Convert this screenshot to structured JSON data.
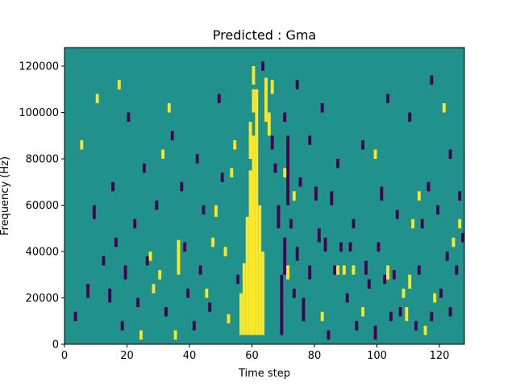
{
  "chart_data": {
    "type": "heatmap",
    "title": "Predicted : Gma",
    "xlabel": "Time step",
    "ylabel": "Frequency (Hz)",
    "xlim": [
      0,
      128
    ],
    "ylim": [
      0,
      128000
    ],
    "x_ticks": [
      0,
      20,
      40,
      60,
      80,
      100,
      120
    ],
    "y_ticks": [
      0,
      20000,
      40000,
      60000,
      80000,
      100000,
      120000
    ],
    "x_tick_labels": [
      "0",
      "20",
      "40",
      "60",
      "80",
      "100",
      "120"
    ],
    "y_tick_labels": [
      "0",
      "20000",
      "40000",
      "60000",
      "80000",
      "100000",
      "120000"
    ],
    "grid": false,
    "colormap": "viridis",
    "value_levels": [
      -1,
      0,
      1
    ],
    "colors": {
      "background": "#21918c",
      "low": "#440154",
      "high": "#fde725"
    },
    "n_time_steps": 128,
    "n_frequency_bins": 128,
    "bin_height_hz": 1000,
    "cells": {
      "high": [
        [
          56,
          4000,
          22000
        ],
        [
          57,
          4000,
          35000
        ],
        [
          58,
          4000,
          55000
        ],
        [
          59,
          4000,
          75000
        ],
        [
          60,
          4000,
          90000
        ],
        [
          61,
          4000,
          110000
        ],
        [
          62,
          4000,
          60000
        ],
        [
          63,
          4000,
          40000
        ],
        [
          59,
          80000,
          96000
        ],
        [
          60,
          100000,
          110000
        ],
        [
          60,
          112000,
          120000
        ],
        [
          64,
          96000,
          115000
        ],
        [
          65,
          90000,
          100000
        ],
        [
          66,
          108000,
          114000
        ],
        [
          36,
          30000,
          45000
        ],
        [
          45,
          20000,
          24000
        ],
        [
          47,
          42000,
          46000
        ],
        [
          48,
          55000,
          60000
        ],
        [
          52,
          9000,
          13000
        ],
        [
          51,
          38000,
          42000
        ],
        [
          53,
          72000,
          76000
        ],
        [
          54,
          84000,
          88000
        ],
        [
          70,
          72000,
          76000
        ],
        [
          71,
          28000,
          34000
        ],
        [
          73,
          62000,
          66000
        ],
        [
          82,
          10000,
          14000
        ],
        [
          87,
          30000,
          34000
        ],
        [
          89,
          30000,
          34000
        ],
        [
          92,
          30000,
          34000
        ],
        [
          95,
          12000,
          16000
        ],
        [
          99,
          80000,
          84000
        ],
        [
          103,
          28000,
          34000
        ],
        [
          108,
          20000,
          24000
        ],
        [
          109,
          10000,
          16000
        ],
        [
          110,
          24000,
          30000
        ],
        [
          111,
          50000,
          54000
        ],
        [
          113,
          62000,
          66000
        ],
        [
          115,
          4000,
          8000
        ],
        [
          118,
          18000,
          22000
        ],
        [
          121,
          100000,
          104000
        ],
        [
          124,
          42000,
          46000
        ],
        [
          126,
          50000,
          54000
        ],
        [
          33,
          100000,
          104000
        ],
        [
          31,
          80000,
          84000
        ],
        [
          27,
          36000,
          40000
        ],
        [
          28,
          22000,
          26000
        ],
        [
          30,
          28000,
          32000
        ],
        [
          35,
          2000,
          6000
        ],
        [
          24,
          2000,
          6000
        ],
        [
          17,
          110000,
          114000
        ],
        [
          10,
          104000,
          108000
        ],
        [
          5,
          84000,
          88000
        ]
      ],
      "low": [
        [
          68,
          50000,
          60000
        ],
        [
          69,
          4000,
          30000
        ],
        [
          70,
          30000,
          46000
        ],
        [
          71,
          60000,
          90000
        ],
        [
          72,
          50000,
          54000
        ],
        [
          73,
          20000,
          24000
        ],
        [
          74,
          36000,
          42000
        ],
        [
          75,
          68000,
          72000
        ],
        [
          76,
          10000,
          20000
        ],
        [
          78,
          28000,
          34000
        ],
        [
          80,
          62000,
          68000
        ],
        [
          81,
          44000,
          50000
        ],
        [
          83,
          40000,
          46000
        ],
        [
          84,
          2000,
          6000
        ],
        [
          85,
          60000,
          66000
        ],
        [
          86,
          30000,
          34000
        ],
        [
          88,
          40000,
          44000
        ],
        [
          90,
          18000,
          22000
        ],
        [
          91,
          40000,
          44000
        ],
        [
          93,
          6000,
          10000
        ],
        [
          96,
          30000,
          36000
        ],
        [
          97,
          24000,
          28000
        ],
        [
          99,
          2000,
          8000
        ],
        [
          100,
          40000,
          44000
        ],
        [
          101,
          62000,
          68000
        ],
        [
          102,
          26000,
          30000
        ],
        [
          104,
          10000,
          14000
        ],
        [
          105,
          28000,
          32000
        ],
        [
          106,
          54000,
          58000
        ],
        [
          107,
          12000,
          16000
        ],
        [
          112,
          6000,
          10000
        ],
        [
          113,
          30000,
          34000
        ],
        [
          114,
          50000,
          54000
        ],
        [
          116,
          66000,
          70000
        ],
        [
          117,
          10000,
          14000
        ],
        [
          119,
          56000,
          60000
        ],
        [
          120,
          20000,
          24000
        ],
        [
          122,
          36000,
          40000
        ],
        [
          123,
          12000,
          16000
        ],
        [
          125,
          30000,
          34000
        ],
        [
          126,
          62000,
          66000
        ],
        [
          127,
          44000,
          48000
        ],
        [
          3,
          10000,
          14000
        ],
        [
          7,
          20000,
          26000
        ],
        [
          9,
          54000,
          60000
        ],
        [
          12,
          34000,
          38000
        ],
        [
          14,
          18000,
          24000
        ],
        [
          15,
          66000,
          70000
        ],
        [
          16,
          42000,
          46000
        ],
        [
          18,
          6000,
          10000
        ],
        [
          19,
          28000,
          34000
        ],
        [
          20,
          96000,
          100000
        ],
        [
          22,
          50000,
          54000
        ],
        [
          23,
          16000,
          20000
        ],
        [
          25,
          74000,
          78000
        ],
        [
          26,
          34000,
          38000
        ],
        [
          29,
          58000,
          62000
        ],
        [
          32,
          12000,
          16000
        ],
        [
          34,
          88000,
          92000
        ],
        [
          37,
          66000,
          70000
        ],
        [
          38,
          40000,
          44000
        ],
        [
          39,
          20000,
          24000
        ],
        [
          41,
          6000,
          10000
        ],
        [
          42,
          78000,
          82000
        ],
        [
          43,
          30000,
          34000
        ],
        [
          44,
          56000,
          60000
        ],
        [
          46,
          14000,
          18000
        ],
        [
          49,
          104000,
          108000
        ],
        [
          50,
          70000,
          74000
        ],
        [
          55,
          26000,
          30000
        ],
        [
          63,
          118000,
          122000
        ],
        [
          66,
          84000,
          90000
        ],
        [
          67,
          74000,
          78000
        ],
        [
          70,
          96000,
          100000
        ],
        [
          74,
          110000,
          114000
        ],
        [
          78,
          86000,
          90000
        ],
        [
          82,
          100000,
          104000
        ],
        [
          87,
          76000,
          80000
        ],
        [
          92,
          50000,
          54000
        ],
        [
          95,
          84000,
          88000
        ],
        [
          103,
          104000,
          108000
        ],
        [
          110,
          96000,
          100000
        ],
        [
          117,
          112000,
          116000
        ],
        [
          123,
          80000,
          84000
        ]
      ]
    }
  }
}
